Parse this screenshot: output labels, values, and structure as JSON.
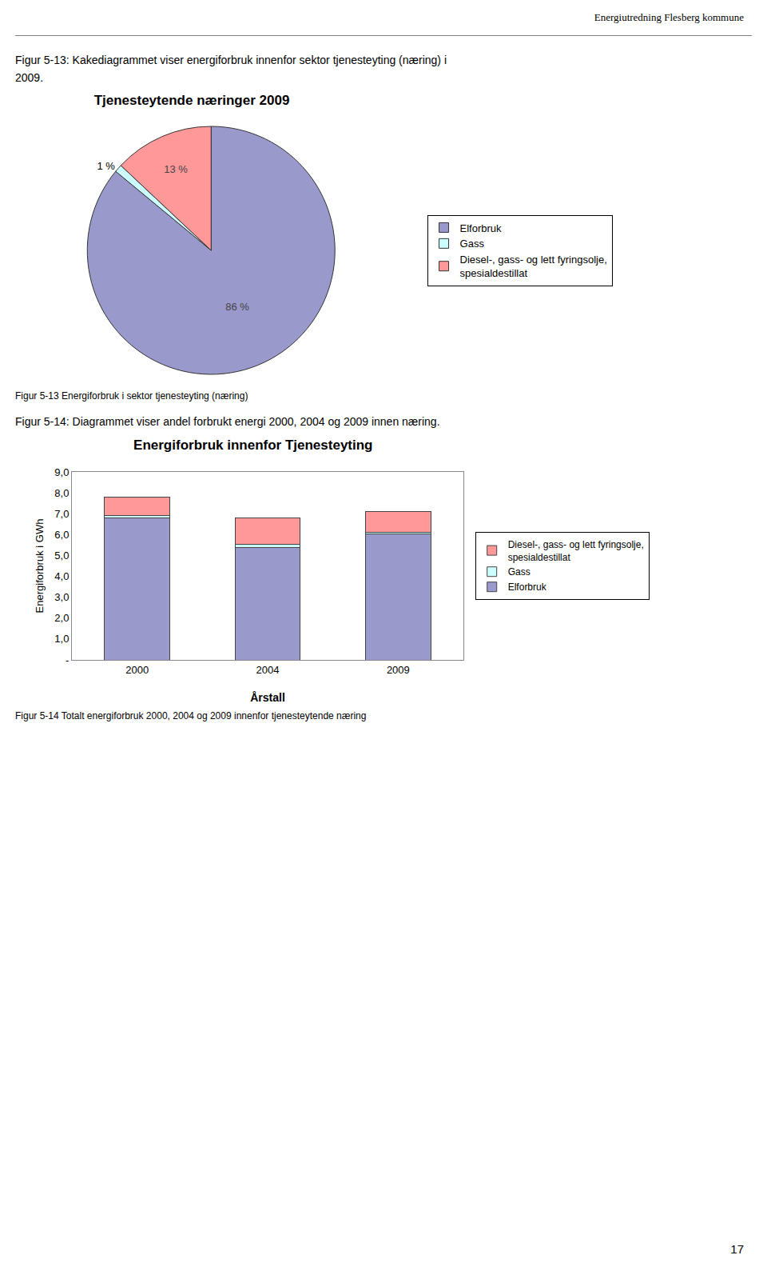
{
  "page_title": "Energiutredning Flesberg kommune",
  "page_number": "17",
  "chart_data": [
    {
      "type": "pie",
      "caption": [
        "Figur 5-13: Kakediagrammet viser energiforbruk innenfor sektor tjenesteyting (næring) i",
        "2009."
      ],
      "title": "Tjenesteytende næringer 2009",
      "subcaption": "Figur 5-13 Energiforbruk i sektor tjenesteyting (næring)",
      "categories": [
        "Elforbruk",
        "Gass",
        "Diesel-, gass- og lett fyringsolje,\nspesialdestillat"
      ],
      "values": [
        86,
        1,
        13
      ],
      "value_labels": [
        "86 %",
        "1 %",
        "13 %"
      ],
      "colors": [
        "#9999cc",
        "#ccffff",
        "#ff9999"
      ],
      "data_labels": true,
      "legend": "right"
    },
    {
      "type": "bar",
      "caption": [
        "Figur 5-14: Diagrammet viser andel forbrukt energi 2000, 2004 og 2009 innen næring."
      ],
      "title": "Energiforbruk innenfor Tjenesteyting",
      "subcaption": "Figur 5-14 Totalt energiforbruk 2000, 2004 og 2009 innenfor tjenesteytende næring",
      "x_label": "Årstall",
      "y_label": "Energiforbruk i GWh",
      "categories": [
        "2000",
        "2004",
        "2009"
      ],
      "stacked": true,
      "series": [
        {
          "name": "Elforbruk",
          "color": "#9999cc",
          "values": [
            6.8,
            5.4,
            6.05
          ]
        },
        {
          "name": "Gass",
          "color": "#ccffff",
          "values": [
            0.1,
            0.15,
            0.07
          ]
        },
        {
          "name": "Diesel-, gass- og lett fyringsolje,\nspesialdestillat",
          "color": "#ff9999",
          "values": [
            0.9,
            1.25,
            0.98
          ]
        }
      ],
      "ylim": [
        0,
        9.0
      ],
      "yticks": [
        {
          "value": 0,
          "label": "-"
        },
        {
          "value": 1.0,
          "label": "1,0"
        },
        {
          "value": 2.0,
          "label": "2,0"
        },
        {
          "value": 3.0,
          "label": "3,0"
        },
        {
          "value": 4.0,
          "label": "4,0"
        },
        {
          "value": 5.0,
          "label": "5,0"
        },
        {
          "value": 6.0,
          "label": "6,0"
        },
        {
          "value": 7.0,
          "label": "7,0"
        },
        {
          "value": 8.0,
          "label": "8,0"
        },
        {
          "value": 9.0,
          "label": "9,0"
        }
      ],
      "grid": false,
      "legend": "right"
    }
  ]
}
